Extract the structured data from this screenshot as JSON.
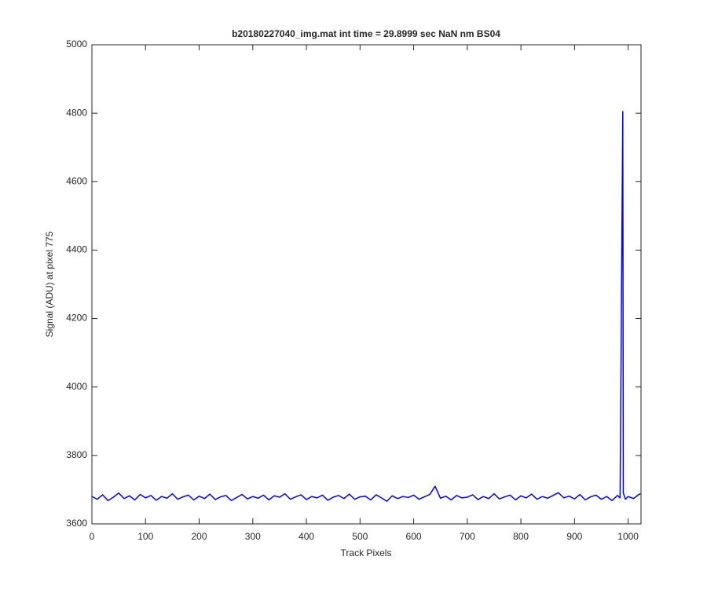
{
  "chart_data": {
    "type": "line",
    "title": "b20180227040_img.mat int time = 29.8999 sec  NaN nm BS04",
    "x_label": "Track Pixels",
    "y_label": "Signal (ADU) at pixel 775",
    "x": [
      0,
      10,
      20,
      30,
      40,
      50,
      60,
      70,
      80,
      90,
      100,
      110,
      120,
      130,
      140,
      150,
      160,
      170,
      180,
      190,
      200,
      210,
      220,
      230,
      240,
      250,
      260,
      270,
      280,
      290,
      300,
      310,
      320,
      330,
      340,
      350,
      360,
      370,
      380,
      390,
      400,
      410,
      420,
      430,
      440,
      450,
      460,
      470,
      480,
      490,
      500,
      510,
      520,
      530,
      540,
      550,
      560,
      570,
      580,
      590,
      600,
      610,
      620,
      630,
      640,
      650,
      660,
      670,
      680,
      690,
      700,
      710,
      720,
      730,
      740,
      750,
      760,
      770,
      780,
      790,
      800,
      810,
      820,
      830,
      840,
      850,
      860,
      870,
      880,
      890,
      900,
      910,
      920,
      930,
      940,
      950,
      960,
      970,
      980,
      985,
      990,
      991,
      995,
      1000,
      1010,
      1020,
      1023
    ],
    "series": [
      {
        "color": "#0000ff",
        "values": [
          3680,
          3672,
          3685,
          3668,
          3678,
          3690,
          3674,
          3682,
          3670,
          3686,
          3676,
          3683,
          3669,
          3680,
          3675,
          3688,
          3672,
          3679,
          3684,
          3670,
          3681,
          3674,
          3687,
          3671,
          3679,
          3683,
          3668,
          3677,
          3686,
          3673,
          3680,
          3675,
          3684,
          3670,
          3682,
          3678,
          3688,
          3672,
          3679,
          3685,
          3671,
          3680,
          3676,
          3684,
          3669,
          3678,
          3683,
          3674,
          3687,
          3672,
          3679,
          3681,
          3670,
          3685,
          3676,
          3666,
          3682,
          3674,
          3680,
          3677,
          3684,
          3672,
          3679,
          3686,
          3710,
          3675,
          3681,
          3670,
          3683,
          3676,
          3678,
          3685,
          3671,
          3680,
          3674,
          3688,
          3673,
          3679,
          3684,
          3670,
          3682,
          3676,
          3687,
          3672,
          3680,
          3675,
          3683,
          3691,
          3676,
          3681,
          3673,
          3686,
          3670,
          3679,
          3684,
          3672,
          3680,
          3668,
          3683,
          3676,
          4805,
          3690,
          3672,
          3680,
          3674,
          3686,
          3688
        ]
      }
    ],
    "xlim": [
      0,
      1024
    ],
    "ylim": [
      3600,
      5000
    ],
    "xticks": [
      0,
      100,
      200,
      300,
      400,
      500,
      600,
      700,
      800,
      900,
      1000
    ],
    "yticks": [
      3600,
      3800,
      4000,
      4200,
      4400,
      4600,
      4800,
      5000
    ],
    "grid": false
  }
}
